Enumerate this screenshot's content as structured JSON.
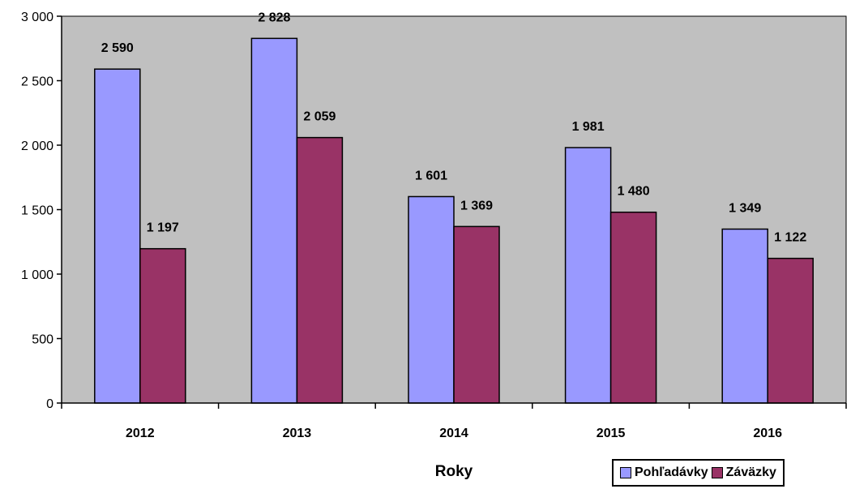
{
  "chart_data": {
    "type": "bar",
    "categories": [
      "2012",
      "2013",
      "2014",
      "2015",
      "2016"
    ],
    "series": [
      {
        "name": "Pohľadávky",
        "values": [
          2590,
          2828,
          1601,
          1981,
          1349
        ],
        "labels": [
          "2 590",
          "2 828",
          "1 601",
          "1 981",
          "1 349"
        ],
        "color": "#9999ff"
      },
      {
        "name": "Záväzky",
        "values": [
          1197,
          2059,
          1369,
          1480,
          1122
        ],
        "labels": [
          "1 197",
          "2 059",
          "1 369",
          "1 480",
          "1 122"
        ],
        "color": "#993366"
      }
    ],
    "ylim": [
      0,
      3000
    ],
    "yticks": [
      0,
      500,
      1000,
      1500,
      2000,
      2500,
      3000
    ],
    "ytick_labels": [
      "0",
      "500",
      "1 000",
      "1 500",
      "2 000",
      "2 500",
      "3 000"
    ],
    "xlabel": "Roky",
    "ylabel": "",
    "plot_background": "#c0c0c0",
    "grid": false,
    "legend_position": "bottom-right"
  }
}
